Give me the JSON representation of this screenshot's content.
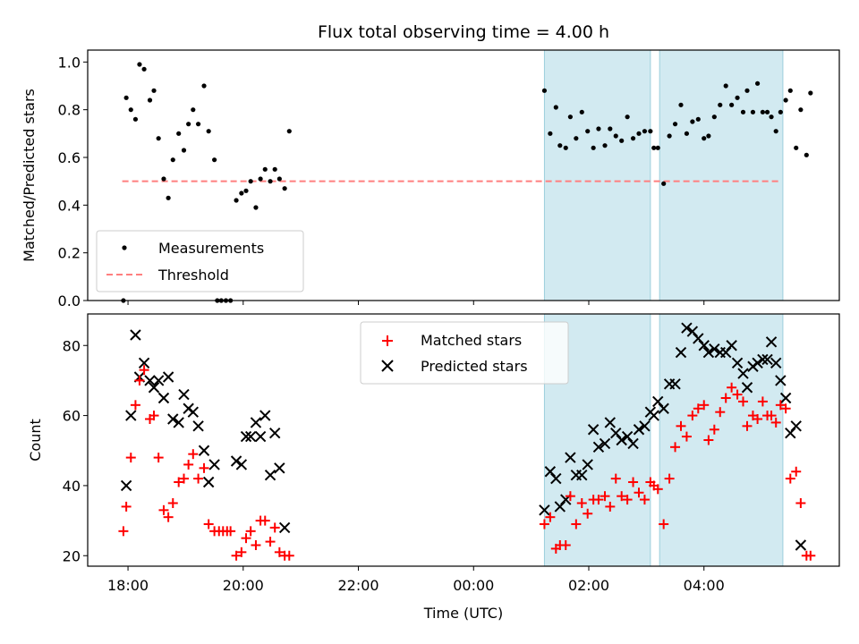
{
  "title": "Flux total observing time = 4.00 h",
  "colors": {
    "measurement": "#000000",
    "threshold": "#ff7f7f",
    "matched": "#ff0000",
    "predicted": "#000000",
    "shade": "#add8e6"
  },
  "chart_data": [
    {
      "type": "scatter",
      "ylabel": "Matched/Predicted stars",
      "xlabel": "",
      "x_unit": "hours since 00:00 UTC (negative = previous day)",
      "xlim": [
        -6.7,
        6.35
      ],
      "ylim": [
        0,
        1.05
      ],
      "yticks": [
        "0.0",
        "0.2",
        "0.4",
        "0.6",
        "0.8",
        "1.0"
      ],
      "ytick_values": [
        0,
        0.2,
        0.4,
        0.6,
        0.8,
        1.0
      ],
      "shaded_intervals": [
        [
          1.23,
          3.07
        ],
        [
          3.23,
          5.37
        ]
      ],
      "legend": {
        "placement": "lower-left",
        "entries": [
          "Measurements",
          "Threshold"
        ]
      },
      "threshold": {
        "name": "Threshold",
        "value": 0.5,
        "x_range": [
          -6.1,
          5.33
        ]
      },
      "series": [
        {
          "name": "Measurements",
          "points": [
            [
              -6.08,
              0.0
            ],
            [
              -6.03,
              0.85
            ],
            [
              -5.95,
              0.8
            ],
            [
              -5.87,
              0.76
            ],
            [
              -5.8,
              0.99
            ],
            [
              -5.72,
              0.97
            ],
            [
              -5.62,
              0.84
            ],
            [
              -5.55,
              0.88
            ],
            [
              -5.47,
              0.68
            ],
            [
              -5.38,
              0.51
            ],
            [
              -5.3,
              0.43
            ],
            [
              -5.22,
              0.59
            ],
            [
              -5.12,
              0.7
            ],
            [
              -5.03,
              0.63
            ],
            [
              -4.95,
              0.74
            ],
            [
              -4.87,
              0.8
            ],
            [
              -4.78,
              0.74
            ],
            [
              -4.68,
              0.9
            ],
            [
              -4.6,
              0.71
            ],
            [
              -4.5,
              0.59
            ],
            [
              -4.45,
              0.0
            ],
            [
              -4.38,
              0.0
            ],
            [
              -4.3,
              0.0
            ],
            [
              -4.22,
              0.0
            ],
            [
              -4.12,
              0.42
            ],
            [
              -4.03,
              0.45
            ],
            [
              -3.95,
              0.46
            ],
            [
              -3.87,
              0.5
            ],
            [
              -3.78,
              0.39
            ],
            [
              -3.7,
              0.51
            ],
            [
              -3.62,
              0.55
            ],
            [
              -3.53,
              0.5
            ],
            [
              -3.45,
              0.55
            ],
            [
              -3.37,
              0.51
            ],
            [
              -3.28,
              0.47
            ],
            [
              -3.2,
              0.71
            ],
            [
              1.23,
              0.88
            ],
            [
              1.33,
              0.7
            ],
            [
              1.43,
              0.81
            ],
            [
              1.5,
              0.65
            ],
            [
              1.6,
              0.64
            ],
            [
              1.68,
              0.77
            ],
            [
              1.78,
              0.68
            ],
            [
              1.88,
              0.79
            ],
            [
              1.98,
              0.71
            ],
            [
              2.08,
              0.64
            ],
            [
              2.17,
              0.72
            ],
            [
              2.28,
              0.65
            ],
            [
              2.37,
              0.72
            ],
            [
              2.47,
              0.69
            ],
            [
              2.57,
              0.67
            ],
            [
              2.67,
              0.77
            ],
            [
              2.77,
              0.68
            ],
            [
              2.87,
              0.7
            ],
            [
              2.97,
              0.71
            ],
            [
              3.07,
              0.71
            ],
            [
              3.13,
              0.64
            ],
            [
              3.2,
              0.64
            ],
            [
              3.3,
              0.49
            ],
            [
              3.4,
              0.69
            ],
            [
              3.5,
              0.74
            ],
            [
              3.6,
              0.82
            ],
            [
              3.7,
              0.7
            ],
            [
              3.8,
              0.75
            ],
            [
              3.9,
              0.76
            ],
            [
              4.0,
              0.68
            ],
            [
              4.08,
              0.69
            ],
            [
              4.18,
              0.77
            ],
            [
              4.28,
              0.82
            ],
            [
              4.38,
              0.9
            ],
            [
              4.48,
              0.82
            ],
            [
              4.58,
              0.85
            ],
            [
              4.68,
              0.79
            ],
            [
              4.75,
              0.88
            ],
            [
              4.85,
              0.79
            ],
            [
              4.93,
              0.91
            ],
            [
              5.02,
              0.79
            ],
            [
              5.1,
              0.79
            ],
            [
              5.17,
              0.77
            ],
            [
              5.25,
              0.71
            ],
            [
              5.33,
              0.79
            ],
            [
              5.42,
              0.84
            ],
            [
              5.5,
              0.88
            ],
            [
              5.6,
              0.64
            ],
            [
              5.68,
              0.8
            ],
            [
              5.78,
              0.61
            ],
            [
              5.85,
              0.87
            ]
          ]
        }
      ]
    },
    {
      "type": "scatter",
      "ylabel": "Count",
      "xlabel": "Time (UTC)",
      "x_unit": "hours since 00:00 UTC (negative = previous day)",
      "xlim": [
        -6.7,
        6.35
      ],
      "ylim": [
        17,
        89
      ],
      "xticks": [
        "18:00",
        "20:00",
        "22:00",
        "00:00",
        "02:00",
        "04:00"
      ],
      "xtick_values": [
        -6,
        -4,
        -2,
        0,
        2,
        4
      ],
      "yticks": [
        "20",
        "40",
        "60",
        "80"
      ],
      "ytick_values": [
        20,
        40,
        60,
        80
      ],
      "shaded_intervals": [
        [
          1.23,
          3.07
        ],
        [
          3.23,
          5.37
        ]
      ],
      "legend": {
        "placement": "top-center",
        "entries": [
          "Matched stars",
          "Predicted stars"
        ]
      },
      "series": [
        {
          "name": "Matched stars",
          "marker": "plus",
          "points": [
            [
              -6.08,
              27
            ],
            [
              -6.03,
              34
            ],
            [
              -5.95,
              48
            ],
            [
              -5.87,
              63
            ],
            [
              -5.8,
              70
            ],
            [
              -5.72,
              73
            ],
            [
              -5.62,
              59
            ],
            [
              -5.55,
              60
            ],
            [
              -5.47,
              48
            ],
            [
              -5.38,
              33
            ],
            [
              -5.3,
              31
            ],
            [
              -5.22,
              35
            ],
            [
              -5.12,
              41
            ],
            [
              -5.03,
              42
            ],
            [
              -4.95,
              46
            ],
            [
              -4.87,
              49
            ],
            [
              -4.78,
              42
            ],
            [
              -4.68,
              45
            ],
            [
              -4.6,
              29
            ],
            [
              -4.5,
              27
            ],
            [
              -4.42,
              27
            ],
            [
              -4.35,
              27
            ],
            [
              -4.28,
              27
            ],
            [
              -4.22,
              27
            ],
            [
              -4.12,
              20
            ],
            [
              -4.03,
              21
            ],
            [
              -3.95,
              25
            ],
            [
              -3.87,
              27
            ],
            [
              -3.78,
              23
            ],
            [
              -3.7,
              30
            ],
            [
              -3.62,
              30
            ],
            [
              -3.53,
              24
            ],
            [
              -3.45,
              28
            ],
            [
              -3.37,
              21
            ],
            [
              -3.28,
              20
            ],
            [
              -3.2,
              20
            ],
            [
              1.23,
              29
            ],
            [
              1.33,
              31
            ],
            [
              1.43,
              22
            ],
            [
              1.5,
              23
            ],
            [
              1.6,
              23
            ],
            [
              1.68,
              37
            ],
            [
              1.78,
              29
            ],
            [
              1.88,
              35
            ],
            [
              1.98,
              32
            ],
            [
              2.08,
              36
            ],
            [
              2.17,
              36
            ],
            [
              2.28,
              37
            ],
            [
              2.37,
              34
            ],
            [
              2.47,
              42
            ],
            [
              2.57,
              37
            ],
            [
              2.67,
              36
            ],
            [
              2.77,
              41
            ],
            [
              2.87,
              38
            ],
            [
              2.97,
              36
            ],
            [
              3.07,
              41
            ],
            [
              3.13,
              40
            ],
            [
              3.2,
              39
            ],
            [
              3.3,
              29
            ],
            [
              3.4,
              42
            ],
            [
              3.5,
              51
            ],
            [
              3.6,
              57
            ],
            [
              3.7,
              54
            ],
            [
              3.8,
              60
            ],
            [
              3.9,
              62
            ],
            [
              4.0,
              63
            ],
            [
              4.08,
              53
            ],
            [
              4.18,
              56
            ],
            [
              4.28,
              61
            ],
            [
              4.38,
              65
            ],
            [
              4.48,
              68
            ],
            [
              4.58,
              66
            ],
            [
              4.68,
              64
            ],
            [
              4.75,
              57
            ],
            [
              4.85,
              60
            ],
            [
              4.93,
              59
            ],
            [
              5.02,
              64
            ],
            [
              5.1,
              60
            ],
            [
              5.17,
              60
            ],
            [
              5.25,
              58
            ],
            [
              5.33,
              63
            ],
            [
              5.42,
              62
            ],
            [
              5.5,
              42
            ],
            [
              5.6,
              44
            ],
            [
              5.68,
              35
            ],
            [
              5.78,
              20
            ],
            [
              5.85,
              20
            ]
          ]
        },
        {
          "name": "Predicted stars",
          "marker": "x",
          "points": [
            [
              -6.03,
              40
            ],
            [
              -5.95,
              60
            ],
            [
              -5.87,
              83
            ],
            [
              -5.8,
              71
            ],
            [
              -5.72,
              75
            ],
            [
              -5.62,
              70
            ],
            [
              -5.55,
              68
            ],
            [
              -5.47,
              70
            ],
            [
              -5.38,
              65
            ],
            [
              -5.3,
              71
            ],
            [
              -5.22,
              59
            ],
            [
              -5.12,
              58
            ],
            [
              -5.03,
              66
            ],
            [
              -4.95,
              62
            ],
            [
              -4.87,
              61
            ],
            [
              -4.78,
              57
            ],
            [
              -4.68,
              50
            ],
            [
              -4.6,
              41
            ],
            [
              -4.5,
              46
            ],
            [
              -4.12,
              47
            ],
            [
              -4.03,
              46
            ],
            [
              -3.95,
              54
            ],
            [
              -3.87,
              54
            ],
            [
              -3.78,
              58
            ],
            [
              -3.7,
              54
            ],
            [
              -3.62,
              60
            ],
            [
              -3.53,
              43
            ],
            [
              -3.45,
              55
            ],
            [
              -3.37,
              45
            ],
            [
              -3.28,
              28
            ],
            [
              1.23,
              33
            ],
            [
              1.33,
              44
            ],
            [
              1.43,
              42
            ],
            [
              1.5,
              34
            ],
            [
              1.6,
              36
            ],
            [
              1.68,
              48
            ],
            [
              1.78,
              43
            ],
            [
              1.88,
              43
            ],
            [
              1.98,
              46
            ],
            [
              2.08,
              56
            ],
            [
              2.17,
              51
            ],
            [
              2.28,
              52
            ],
            [
              2.37,
              58
            ],
            [
              2.47,
              55
            ],
            [
              2.57,
              53
            ],
            [
              2.67,
              54
            ],
            [
              2.77,
              52
            ],
            [
              2.87,
              56
            ],
            [
              2.97,
              57
            ],
            [
              3.07,
              61
            ],
            [
              3.13,
              60
            ],
            [
              3.2,
              64
            ],
            [
              3.3,
              62
            ],
            [
              3.4,
              69
            ],
            [
              3.5,
              69
            ],
            [
              3.6,
              78
            ],
            [
              3.7,
              85
            ],
            [
              3.8,
              84
            ],
            [
              3.9,
              82
            ],
            [
              4.0,
              80
            ],
            [
              4.08,
              78
            ],
            [
              4.18,
              79
            ],
            [
              4.28,
              78
            ],
            [
              4.38,
              78
            ],
            [
              4.48,
              80
            ],
            [
              4.58,
              75
            ],
            [
              4.68,
              72
            ],
            [
              4.75,
              68
            ],
            [
              4.85,
              74
            ],
            [
              4.93,
              75
            ],
            [
              5.02,
              76
            ],
            [
              5.1,
              76
            ],
            [
              5.17,
              81
            ],
            [
              5.25,
              75
            ],
            [
              5.33,
              70
            ],
            [
              5.42,
              65
            ],
            [
              5.5,
              55
            ],
            [
              5.6,
              57
            ],
            [
              5.68,
              23
            ]
          ]
        }
      ]
    }
  ]
}
